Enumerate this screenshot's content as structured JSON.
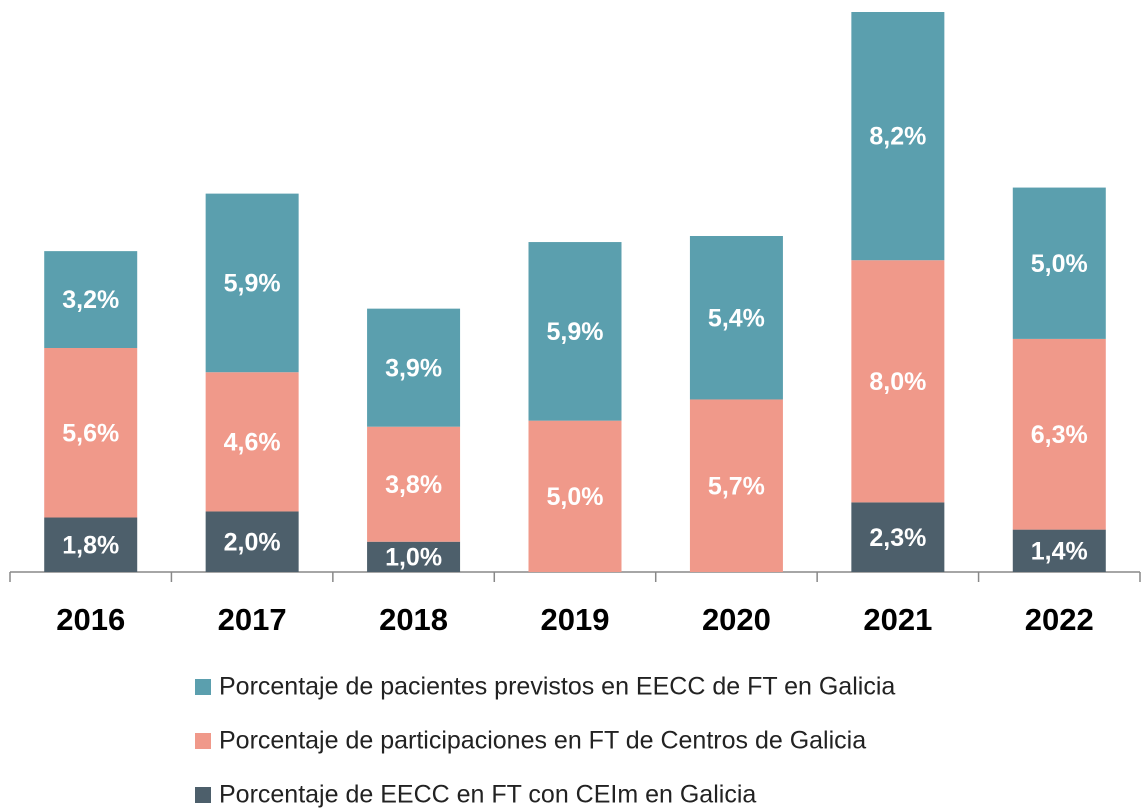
{
  "chart_data": {
    "type": "stacked_bar",
    "categories": [
      "2016",
      "2017",
      "2018",
      "2019",
      "2020",
      "2021",
      "2022"
    ],
    "series": [
      {
        "name": "Porcentaje de pacientes previstos en EECC de FT en Galicia",
        "color": "#5b9fae",
        "values": [
          3.2,
          5.9,
          3.9,
          5.9,
          5.4,
          8.2,
          5.0
        ],
        "value_labels": [
          "3,2%",
          "5,9%",
          "3,9%",
          "5,9%",
          "5,4%",
          "8,2%",
          "5,0%"
        ]
      },
      {
        "name": "Porcentaje de participaciones en FT de Centros de Galicia",
        "color": "#f0998a",
        "values": [
          5.6,
          4.6,
          3.8,
          5.0,
          5.7,
          8.0,
          6.3
        ],
        "value_labels": [
          "5,6%",
          "4,6%",
          "3,8%",
          "5,0%",
          "5,7%",
          "8,0%",
          "6,3%"
        ]
      },
      {
        "name": "Porcentaje de EECC en FT con CEIm en Galicia",
        "color": "#4d5f6b",
        "values": [
          1.8,
          2.0,
          1.0,
          null,
          null,
          2.3,
          1.4
        ],
        "value_labels": [
          "1,8%",
          "2,0%",
          "1,0%",
          null,
          null,
          "2,3%",
          "1,4%"
        ]
      }
    ]
  }
}
